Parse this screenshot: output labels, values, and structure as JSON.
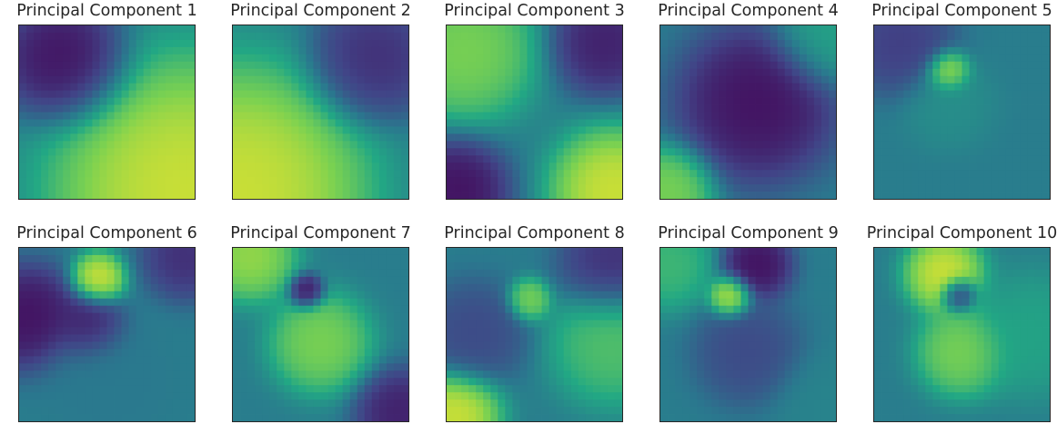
{
  "colormap": "viridis",
  "colormap_stops": [
    "#440154",
    "#414487",
    "#2a788e",
    "#22a884",
    "#7ad151",
    "#fde725"
  ],
  "chart_data": [
    {
      "type": "heatmap",
      "title": "Principal Component 1",
      "grid": false,
      "blobs": [
        {
          "x": 0.95,
          "y": 0.95,
          "r": 0.75,
          "v": 1.0
        },
        {
          "x": 0.25,
          "y": 0.2,
          "r": 0.35,
          "v": 0.0
        }
      ]
    },
    {
      "type": "heatmap",
      "title": "Principal Component 2",
      "grid": false,
      "blobs": [
        {
          "x": 0.05,
          "y": 0.95,
          "r": 0.7,
          "v": 1.0
        },
        {
          "x": 0.8,
          "y": 0.2,
          "r": 0.35,
          "v": 0.1
        }
      ]
    },
    {
      "type": "heatmap",
      "title": "Principal Component 3",
      "grid": false,
      "blobs": [
        {
          "x": 0.95,
          "y": 0.95,
          "r": 0.35,
          "v": 1.0
        },
        {
          "x": 0.1,
          "y": 0.15,
          "r": 0.4,
          "v": 0.85
        },
        {
          "x": 0.05,
          "y": 0.95,
          "r": 0.3,
          "v": 0.0
        },
        {
          "x": 0.9,
          "y": 0.1,
          "r": 0.3,
          "v": 0.05
        }
      ]
    },
    {
      "type": "heatmap",
      "title": "Principal Component 4",
      "grid": false,
      "blobs": [
        {
          "x": 0.55,
          "y": 0.45,
          "r": 0.45,
          "v": 0.0
        },
        {
          "x": 0.05,
          "y": 0.95,
          "r": 0.25,
          "v": 0.85
        },
        {
          "x": 0.95,
          "y": 0.05,
          "r": 0.3,
          "v": 0.6
        }
      ]
    },
    {
      "type": "heatmap",
      "title": "Principal Component 5",
      "grid": false,
      "blobs": [
        {
          "x": 0.42,
          "y": 0.27,
          "r": 0.12,
          "v": 1.0
        },
        {
          "x": 0.42,
          "y": 0.45,
          "r": 0.25,
          "v": 0.5
        },
        {
          "x": 0.15,
          "y": 0.1,
          "r": 0.3,
          "v": 0.15
        }
      ]
    },
    {
      "type": "heatmap",
      "title": "Principal Component 6",
      "grid": false,
      "blobs": [
        {
          "x": 0.45,
          "y": 0.18,
          "r": 0.15,
          "v": 1.0
        },
        {
          "x": 0.05,
          "y": 0.4,
          "r": 0.3,
          "v": 0.0
        },
        {
          "x": 0.4,
          "y": 0.45,
          "r": 0.2,
          "v": 0.05
        },
        {
          "x": 0.95,
          "y": 0.05,
          "r": 0.25,
          "v": 0.1
        },
        {
          "x": 0.5,
          "y": 0.75,
          "r": 0.35,
          "v": 0.4
        }
      ]
    },
    {
      "type": "heatmap",
      "title": "Principal Component 7",
      "grid": false,
      "blobs": [
        {
          "x": 0.42,
          "y": 0.25,
          "r": 0.1,
          "v": 0.0
        },
        {
          "x": 0.5,
          "y": 0.55,
          "r": 0.28,
          "v": 0.85
        },
        {
          "x": 0.1,
          "y": 0.05,
          "r": 0.25,
          "v": 0.9
        },
        {
          "x": 0.95,
          "y": 0.95,
          "r": 0.25,
          "v": 0.05
        }
      ]
    },
    {
      "type": "heatmap",
      "title": "Principal Component 8",
      "grid": false,
      "blobs": [
        {
          "x": 0.47,
          "y": 0.3,
          "r": 0.12,
          "v": 0.85
        },
        {
          "x": 0.05,
          "y": 0.95,
          "r": 0.25,
          "v": 1.0
        },
        {
          "x": 0.95,
          "y": 0.55,
          "r": 0.35,
          "v": 0.75
        },
        {
          "x": 0.95,
          "y": 0.1,
          "r": 0.3,
          "v": 0.1
        },
        {
          "x": 0.15,
          "y": 0.5,
          "r": 0.3,
          "v": 0.2
        }
      ]
    },
    {
      "type": "heatmap",
      "title": "Principal Component 9",
      "grid": false,
      "blobs": [
        {
          "x": 0.4,
          "y": 0.28,
          "r": 0.12,
          "v": 1.0
        },
        {
          "x": 0.55,
          "y": 0.1,
          "r": 0.2,
          "v": 0.0
        },
        {
          "x": 0.05,
          "y": 0.1,
          "r": 0.25,
          "v": 0.7
        },
        {
          "x": 0.95,
          "y": 0.9,
          "r": 0.3,
          "v": 0.45
        },
        {
          "x": 0.5,
          "y": 0.6,
          "r": 0.3,
          "v": 0.2
        }
      ]
    },
    {
      "type": "heatmap",
      "title": "Principal Component 10",
      "grid": false,
      "blobs": [
        {
          "x": 0.48,
          "y": 0.27,
          "r": 0.1,
          "v": 0.0
        },
        {
          "x": 0.4,
          "y": 0.15,
          "r": 0.22,
          "v": 1.0
        },
        {
          "x": 0.5,
          "y": 0.6,
          "r": 0.25,
          "v": 0.85
        },
        {
          "x": 0.9,
          "y": 0.5,
          "r": 0.35,
          "v": 0.6
        }
      ]
    }
  ]
}
